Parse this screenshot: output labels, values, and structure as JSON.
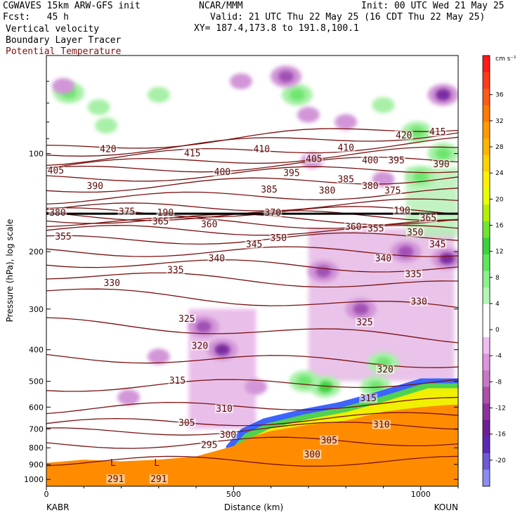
{
  "header": {
    "model": "CGWAVES 15km ARW-GFS init",
    "fcst": "Fcst:   45 h",
    "center": "NCAR/MMM",
    "init": "Init: 00 UTC Wed 21 May 25",
    "valid": "Valid: 21 UTC Thu 22 May 25 (16 CDT Thu 22 May 25)",
    "xy": "XY= 187.4,173.8 to 191.8,100.1",
    "field1": "Vertical velocity",
    "field2": "Boundary Layer Tracer",
    "field3": "Potential Temperature"
  },
  "colors": {
    "theta": "#7a1010",
    "terrain": "#ff8c00",
    "text": "#000000"
  },
  "chart_data": {
    "type": "heatmap",
    "title": "",
    "xlabel": "Distance (km)",
    "ylabel": "Pressure (hPa), log scale",
    "xlim": [
      0,
      1100
    ],
    "ylim": [
      1050,
      50
    ],
    "yscale": "log",
    "x_ticks": [
      0,
      500,
      1000
    ],
    "y_ticks": [
      100,
      200,
      300,
      400,
      500,
      600,
      700,
      800,
      900,
      1000
    ],
    "endpoints": {
      "left": "KABR",
      "right": "KOUN"
    },
    "colorbar": {
      "unit": "cm s⁻¹",
      "ticks": [
        36,
        32,
        28,
        24,
        20,
        16,
        12,
        8,
        4,
        0,
        -4,
        -8,
        -12,
        -16,
        -20
      ],
      "colors": [
        "#ff1a1a",
        "#ff3c1a",
        "#ff5a1a",
        "#ff7a00",
        "#ff9900",
        "#ffb400",
        "#ffd200",
        "#fff000",
        "#e6ff00",
        "#b4f000",
        "#6ee632",
        "#3cd23c",
        "#5ee65e",
        "#8cf08c",
        "#b4f5b4",
        "#ffffff",
        "#ffffff",
        "#f0bef0",
        "#dc96dc",
        "#c878c8",
        "#aa50aa",
        "#8c32a0",
        "#6e1e96",
        "#5a2ab4",
        "#6e5ad2",
        "#8c8cf0"
      ]
    },
    "theta_contours": [
      {
        "value": 291,
        "p_left": 880,
        "p_right": 880
      },
      {
        "value": 295,
        "p_left": 780,
        "p_right": 760
      },
      {
        "value": 300,
        "p_left": 720,
        "p_right": 680
      },
      {
        "value": 305,
        "p_left": 680,
        "p_right": 640
      },
      {
        "value": 310,
        "p_left": 610,
        "p_right": 580
      },
      {
        "value": 315,
        "p_left": 520,
        "p_right": 500
      },
      {
        "value": 320,
        "p_left": 420,
        "p_right": 440
      },
      {
        "value": 325,
        "p_left": 330,
        "p_right": 370
      },
      {
        "value": 330,
        "p_left": 265,
        "p_right": 300
      },
      {
        "value": 335,
        "p_left": 235,
        "p_right": 255
      },
      {
        "value": 340,
        "p_left": 215,
        "p_right": 225
      },
      {
        "value": 345,
        "p_left": 200,
        "p_right": 200
      },
      {
        "value": 350,
        "p_left": 185,
        "p_right": 180
      },
      {
        "value": 355,
        "p_left": 172,
        "p_right": 172
      },
      {
        "value": 360,
        "p_left": 162,
        "p_right": 165
      },
      {
        "value": 365,
        "p_left": 158,
        "p_right": 160
      },
      {
        "value": 370,
        "p_left": 155,
        "p_right": 155
      },
      {
        "value": 375,
        "p_left": 152,
        "p_right": 150
      },
      {
        "value": 380,
        "p_left": 148,
        "p_right": 142
      },
      {
        "value": 385,
        "p_left": 138,
        "p_right": 132
      },
      {
        "value": 390,
        "p_left": 128,
        "p_right": 118
      },
      {
        "value": 395,
        "p_left": 120,
        "p_right": 110
      },
      {
        "value": 400,
        "p_left": 114,
        "p_right": 104
      },
      {
        "value": 405,
        "p_left": 110,
        "p_right": 98
      },
      {
        "value": 410,
        "p_left": 105,
        "p_right": 92
      },
      {
        "value": 415,
        "p_left": 100,
        "p_right": 86
      },
      {
        "value": 420,
        "p_left": 97,
        "p_right": 82
      }
    ],
    "theta_labels": [
      {
        "text": "420",
        "x": 165,
        "p": 97
      },
      {
        "text": "415",
        "x": 390,
        "p": 100
      },
      {
        "text": "410",
        "x": 575,
        "p": 97
      },
      {
        "text": "405",
        "x": 25,
        "p": 113
      },
      {
        "text": "400",
        "x": 470,
        "p": 114
      },
      {
        "text": "395",
        "x": 655,
        "p": 115
      },
      {
        "text": "390",
        "x": 130,
        "p": 126
      },
      {
        "text": "385",
        "x": 595,
        "p": 129
      },
      {
        "text": "380",
        "x": 750,
        "p": 130
      },
      {
        "text": "375",
        "x": 215,
        "p": 151
      },
      {
        "text": "370",
        "x": 605,
        "p": 152
      },
      {
        "text": "365",
        "x": 305,
        "p": 162
      },
      {
        "text": "360",
        "x": 435,
        "p": 165
      },
      {
        "text": "355",
        "x": 45,
        "p": 180
      },
      {
        "text": "350",
        "x": 620,
        "p": 182
      },
      {
        "text": "345",
        "x": 555,
        "p": 190
      },
      {
        "text": "340",
        "x": 455,
        "p": 210
      },
      {
        "text": "335",
        "x": 345,
        "p": 228
      },
      {
        "text": "330",
        "x": 175,
        "p": 250
      },
      {
        "text": "325",
        "x": 375,
        "p": 322
      },
      {
        "text": "320",
        "x": 410,
        "p": 390
      },
      {
        "text": "315",
        "x": 350,
        "p": 498
      },
      {
        "text": "310",
        "x": 475,
        "p": 608
      },
      {
        "text": "305",
        "x": 375,
        "p": 672
      },
      {
        "text": "300",
        "x": 485,
        "p": 730
      },
      {
        "text": "295",
        "x": 435,
        "p": 785
      },
      {
        "text": "291",
        "x": 185,
        "p": 1000
      },
      {
        "text": "291",
        "x": 300,
        "p": 1000
      },
      {
        "text": "420",
        "x": 955,
        "p": 88
      },
      {
        "text": "415",
        "x": 1045,
        "p": 86
      },
      {
        "text": "410",
        "x": 800,
        "p": 96
      },
      {
        "text": "405",
        "x": 715,
        "p": 104
      },
      {
        "text": "400",
        "x": 865,
        "p": 105
      },
      {
        "text": "395",
        "x": 935,
        "p": 105
      },
      {
        "text": "390",
        "x": 1055,
        "p": 108
      },
      {
        "text": "385",
        "x": 800,
        "p": 120
      },
      {
        "text": "380",
        "x": 865,
        "p": 126
      },
      {
        "text": "375",
        "x": 925,
        "p": 130
      },
      {
        "text": "360",
        "x": 820,
        "p": 168
      },
      {
        "text": "355",
        "x": 880,
        "p": 170
      },
      {
        "text": "350",
        "x": 985,
        "p": 175
      },
      {
        "text": "345",
        "x": 1045,
        "p": 190
      },
      {
        "text": "340",
        "x": 900,
        "p": 210
      },
      {
        "text": "335",
        "x": 980,
        "p": 235
      },
      {
        "text": "330",
        "x": 995,
        "p": 285
      },
      {
        "text": "325",
        "x": 850,
        "p": 330
      },
      {
        "text": "320",
        "x": 905,
        "p": 460
      },
      {
        "text": "315",
        "x": 860,
        "p": 565
      },
      {
        "text": "310",
        "x": 895,
        "p": 680
      },
      {
        "text": "305",
        "x": 755,
        "p": 760
      },
      {
        "text": "300",
        "x": 710,
        "p": 840
      },
      {
        "text": "380",
        "x": 30,
        "p": 152
      },
      {
        "text": "190",
        "x": 318,
        "p": 152
      },
      {
        "text": "190",
        "x": 950,
        "p": 150
      },
      {
        "text": "365",
        "x": 1020,
        "p": 158
      }
    ],
    "lows": [
      {
        "text": "L",
        "x": 178,
        "p": 910
      },
      {
        "text": "L",
        "x": 295,
        "p": 910
      }
    ],
    "terrain": [
      [
        0,
        890
      ],
      [
        100,
        870
      ],
      [
        200,
        880
      ],
      [
        300,
        870
      ],
      [
        400,
        850
      ],
      [
        500,
        790
      ],
      [
        550,
        740
      ],
      [
        600,
        710
      ],
      [
        700,
        680
      ],
      [
        800,
        660
      ],
      [
        900,
        620
      ],
      [
        1000,
        600
      ],
      [
        1080,
        590
      ],
      [
        1100,
        590
      ]
    ],
    "blt_front": [
      [
        480,
        790
      ],
      [
        520,
        700
      ],
      [
        580,
        650
      ],
      [
        680,
        610
      ],
      [
        780,
        580
      ],
      [
        880,
        540
      ],
      [
        1000,
        490
      ],
      [
        1080,
        490
      ],
      [
        1100,
        490
      ]
    ],
    "w_up": [
      {
        "x": 60,
        "p": 65,
        "v": 8
      },
      {
        "x": 300,
        "p": 66,
        "v": 6
      },
      {
        "x": 140,
        "p": 72,
        "v": 6
      },
      {
        "x": 670,
        "p": 66,
        "v": 8
      },
      {
        "x": 900,
        "p": 71,
        "v": 6
      },
      {
        "x": 160,
        "p": 82,
        "v": 4
      },
      {
        "x": 990,
        "p": 86,
        "v": 8
      },
      {
        "x": 1060,
        "p": 100,
        "v": 10
      },
      {
        "x": 1000,
        "p": 118,
        "v": 8
      },
      {
        "x": 745,
        "p": 520,
        "v": 12
      },
      {
        "x": 690,
        "p": 500,
        "v": 8
      },
      {
        "x": 900,
        "p": 440,
        "v": 10
      },
      {
        "x": 880,
        "p": 520,
        "v": 8
      }
    ],
    "w_down": [
      {
        "x": 45,
        "p": 62,
        "v": -6
      },
      {
        "x": 640,
        "p": 58,
        "v": -8
      },
      {
        "x": 1060,
        "p": 66,
        "v": -12
      },
      {
        "x": 520,
        "p": 60,
        "v": -6
      },
      {
        "x": 800,
        "p": 80,
        "v": -6
      },
      {
        "x": 700,
        "p": 76,
        "v": -6
      },
      {
        "x": 710,
        "p": 105,
        "v": -6
      },
      {
        "x": 900,
        "p": 120,
        "v": -6
      },
      {
        "x": 470,
        "p": 400,
        "v": -12
      },
      {
        "x": 420,
        "p": 340,
        "v": -10
      },
      {
        "x": 740,
        "p": 230,
        "v": -8
      },
      {
        "x": 840,
        "p": 300,
        "v": -8
      },
      {
        "x": 960,
        "p": 200,
        "v": -10
      },
      {
        "x": 1070,
        "p": 210,
        "v": -14
      },
      {
        "x": 300,
        "p": 420,
        "v": -4
      },
      {
        "x": 560,
        "p": 520,
        "v": -6
      },
      {
        "x": 220,
        "p": 560,
        "v": -4
      }
    ]
  }
}
